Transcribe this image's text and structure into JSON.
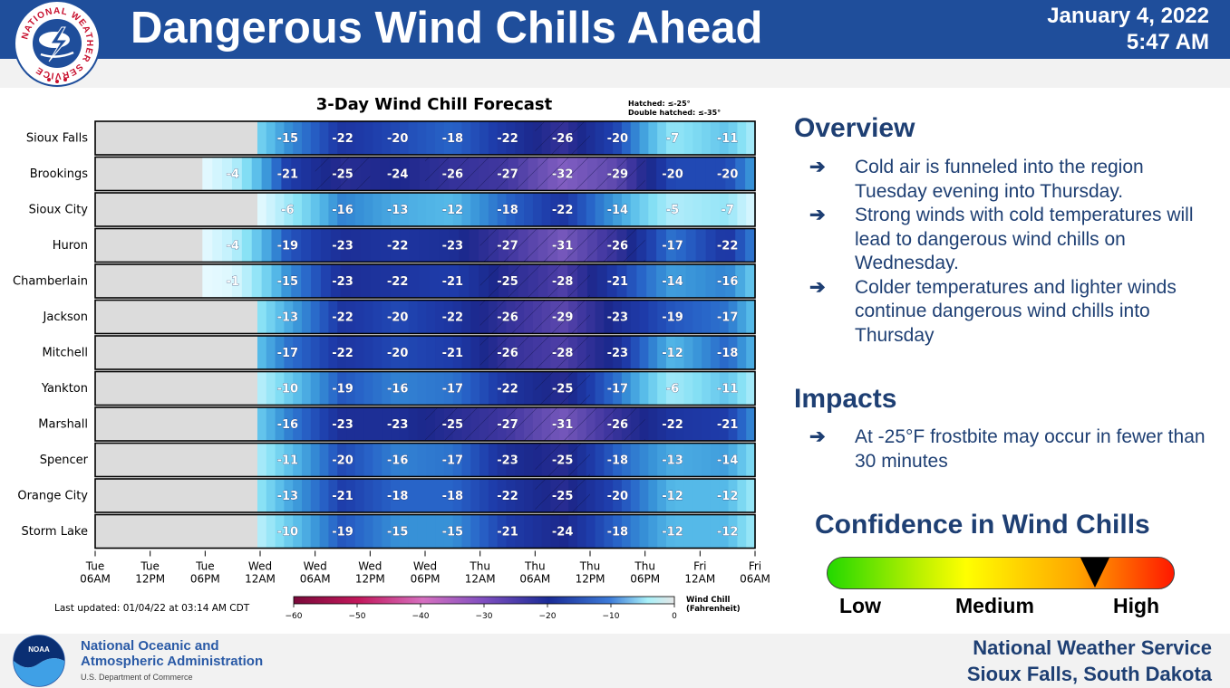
{
  "header": {
    "title": "Dangerous Wind Chills Ahead",
    "date": "January 4, 2022",
    "time": "5:47 AM",
    "logo_text": "NATIONAL WEATHER SERVICE"
  },
  "chart_data": {
    "type": "heatmap",
    "title": "3-Day Wind Chill Forecast",
    "hatch_note_1": "Hatched: ≤-25°",
    "hatch_note_2": "Double hatched: ≤-35°",
    "last_updated": "Last updated: 01/04/22 at 03:14 AM CDT",
    "colorbar_label_1": "Wind Chill",
    "colorbar_label_2": "(Fahrenheit)",
    "colorbar_ticks": [
      -60,
      -50,
      -40,
      -30,
      -20,
      -10,
      0
    ],
    "x_ticks": [
      [
        "Tue",
        "06AM"
      ],
      [
        "Tue",
        "12PM"
      ],
      [
        "Tue",
        "06PM"
      ],
      [
        "Wed",
        "12AM"
      ],
      [
        "Wed",
        "06AM"
      ],
      [
        "Wed",
        "12PM"
      ],
      [
        "Wed",
        "06PM"
      ],
      [
        "Thu",
        "12AM"
      ],
      [
        "Thu",
        "06AM"
      ],
      [
        "Thu",
        "12PM"
      ],
      [
        "Thu",
        "06PM"
      ],
      [
        "Fri",
        "12AM"
      ],
      [
        "Fri",
        "06AM"
      ]
    ],
    "rows": [
      {
        "name": "Sioux Falls",
        "values": [
          null,
          null,
          null,
          -15,
          -22,
          -20,
          -18,
          -22,
          -26,
          -20,
          -7,
          -11
        ]
      },
      {
        "name": "Brookings",
        "values": [
          null,
          null,
          -4,
          -21,
          -25,
          -24,
          -26,
          -27,
          -32,
          -29,
          -20,
          -20
        ]
      },
      {
        "name": "Sioux City",
        "values": [
          null,
          null,
          null,
          -6,
          -16,
          -13,
          -12,
          -18,
          -22,
          -14,
          -5,
          -7
        ]
      },
      {
        "name": "Huron",
        "values": [
          null,
          null,
          -4,
          -19,
          -23,
          -22,
          -23,
          -27,
          -31,
          -26,
          -17,
          -22
        ]
      },
      {
        "name": "Chamberlain",
        "values": [
          null,
          null,
          -1,
          -15,
          -23,
          -22,
          -21,
          -25,
          -28,
          -21,
          -14,
          -16
        ]
      },
      {
        "name": "Jackson",
        "values": [
          null,
          null,
          null,
          -13,
          -22,
          -20,
          -22,
          -26,
          -29,
          -23,
          -19,
          -17
        ]
      },
      {
        "name": "Mitchell",
        "values": [
          null,
          null,
          null,
          -17,
          -22,
          -20,
          -21,
          -26,
          -28,
          -23,
          -12,
          -18
        ]
      },
      {
        "name": "Yankton",
        "values": [
          null,
          null,
          null,
          -10,
          -19,
          -16,
          -17,
          -22,
          -25,
          -17,
          -6,
          -11
        ]
      },
      {
        "name": "Marshall",
        "values": [
          null,
          null,
          null,
          -16,
          -23,
          -23,
          -25,
          -27,
          -31,
          -26,
          -22,
          -21
        ]
      },
      {
        "name": "Spencer",
        "values": [
          null,
          null,
          null,
          -11,
          -20,
          -16,
          -17,
          -23,
          -25,
          -18,
          -13,
          -14
        ]
      },
      {
        "name": "Orange City",
        "values": [
          null,
          null,
          null,
          -13,
          -21,
          -18,
          -18,
          -22,
          -25,
          -20,
          -12,
          -12
        ]
      },
      {
        "name": "Storm Lake",
        "values": [
          null,
          null,
          null,
          -10,
          -19,
          -15,
          -15,
          -21,
          -24,
          -18,
          -12,
          -12
        ]
      }
    ]
  },
  "overview": {
    "title": "Overview",
    "bullets": [
      "Cold air is funneled into the region Tuesday evening into Thursday.",
      "Strong winds with cold temperatures will lead to dangerous wind chills on Wednesday.",
      "Colder temperatures and lighter winds continue dangerous wind chills into Thursday"
    ]
  },
  "impacts": {
    "title": "Impacts",
    "bullets": [
      "At -25°F frostbite may occur in fewer than 30 minutes"
    ]
  },
  "bullet_arrow": "➔",
  "confidence": {
    "title": "Confidence in Wind Chills",
    "low": "Low",
    "medium": "Medium",
    "high": "High",
    "level": 0.77
  },
  "footer": {
    "noaa_logo_text": "NOAA",
    "noaa_line1": "National Oceanic and",
    "noaa_line2": "Atmospheric Administration",
    "noaa_dept": "U.S. Department of Commerce",
    "office_line1": "National Weather Service",
    "office_line2": "Sioux Falls, South Dakota"
  }
}
